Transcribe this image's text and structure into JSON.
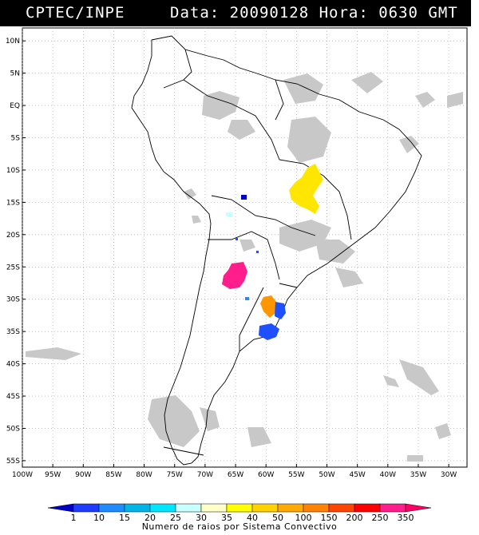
{
  "header": {
    "left": "CPTEC/INPE",
    "right": "Data: 20090128 Hora: 0630 GMT"
  },
  "map": {
    "lon_range": [
      -100,
      -27
    ],
    "lat_range": [
      -56,
      12
    ],
    "lat_labels": [
      "10N",
      "5N",
      "EQ",
      "5S",
      "10S",
      "15S",
      "20S",
      "25S",
      "30S",
      "35S",
      "40S",
      "45S",
      "50S",
      "55S"
    ],
    "lon_labels": [
      "100W",
      "95W",
      "90W",
      "85W",
      "80W",
      "75W",
      "70W",
      "65W",
      "60W",
      "55W",
      "50W",
      "45W",
      "40W",
      "35W",
      "30W"
    ]
  },
  "legend": {
    "values": [
      "1",
      "10",
      "15",
      "20",
      "25",
      "30",
      "35",
      "40",
      "50",
      "100",
      "150",
      "200",
      "250",
      "350"
    ],
    "colors": [
      "#0000c8",
      "#1e3cff",
      "#1e8cff",
      "#00b4e6",
      "#00e6ff",
      "#c8ffff",
      "#ffffc8",
      "#ffff00",
      "#ffd200",
      "#ffaa00",
      "#ff8200",
      "#ff4600",
      "#ff0000",
      "#ff1e8c",
      "#ff0064"
    ],
    "caption": "Numero de raios por Sistema Convectivo"
  },
  "systems": [
    {
      "name": "yellow-cluster",
      "color": "#ffe600"
    },
    {
      "name": "magenta-cluster",
      "color": "#ff1e8c"
    },
    {
      "name": "orange-cluster",
      "color": "#ff9600"
    },
    {
      "name": "blue-cluster",
      "color": "#1e50ff"
    }
  ]
}
